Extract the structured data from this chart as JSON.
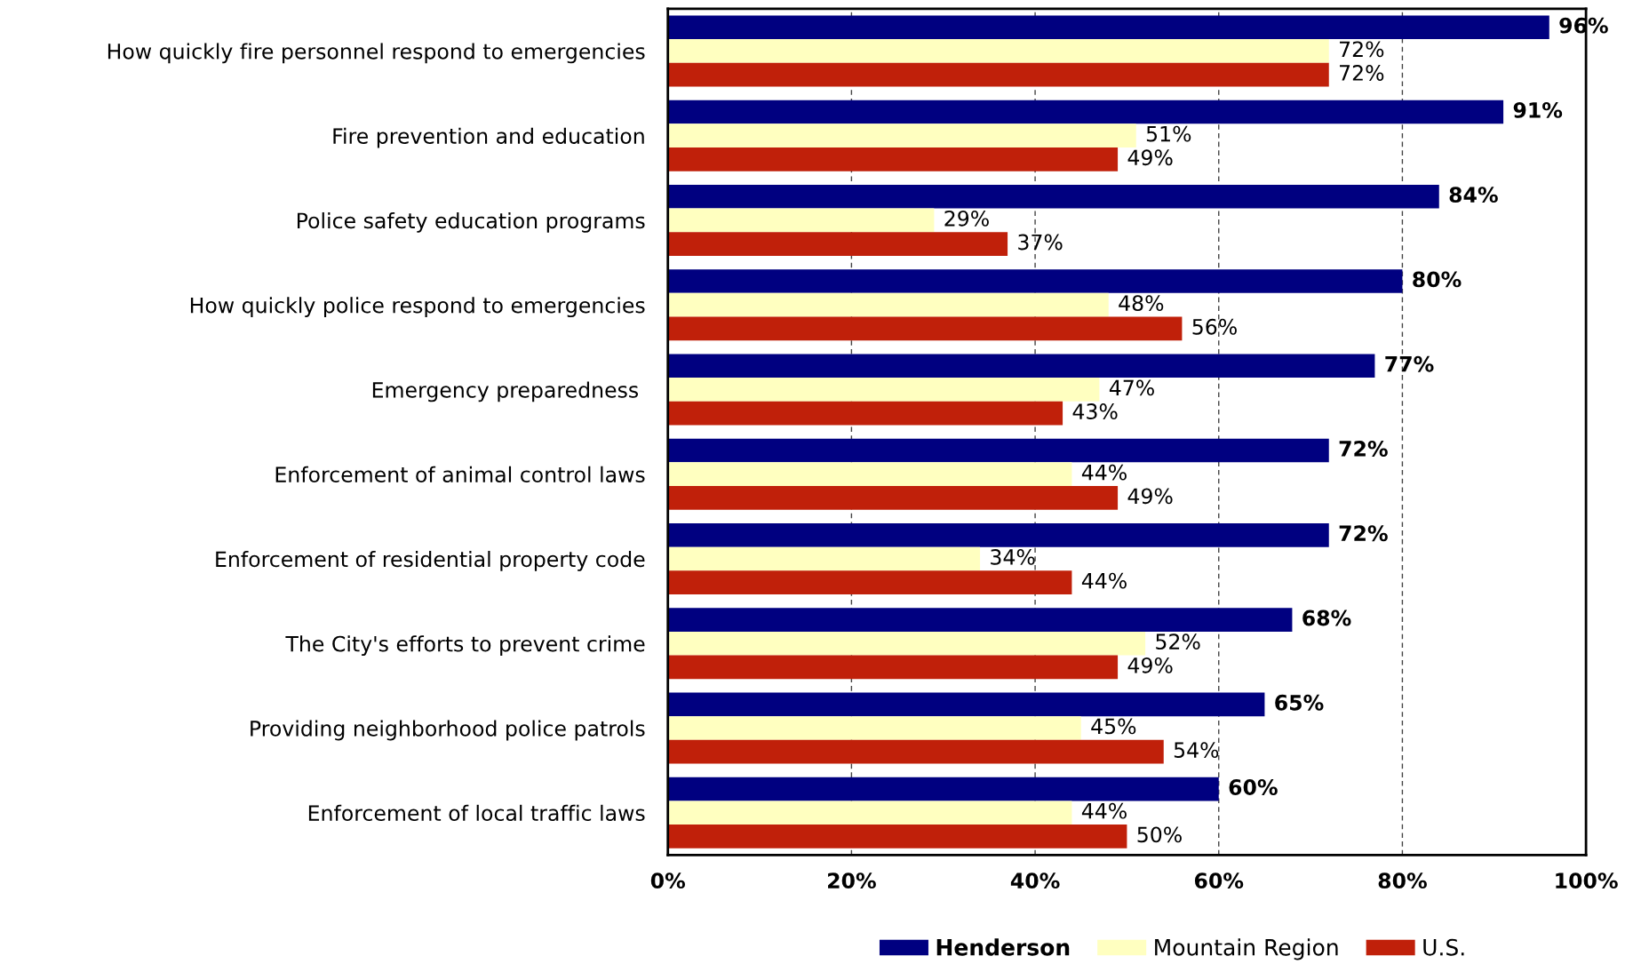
{
  "chart_data": {
    "type": "bar",
    "orientation": "horizontal",
    "categories": [
      "How quickly fire personnel respond to emergencies",
      "Fire prevention and education",
      "Police safety education programs",
      "How quickly police respond to emergencies",
      "Emergency preparedness ",
      "Enforcement of animal control laws",
      "Enforcement of residential property code",
      "The City's efforts to prevent crime",
      "Providing neighborhood police patrols",
      "Enforcement of local traffic laws"
    ],
    "series": [
      {
        "name": "Henderson",
        "color": "#000080",
        "values": [
          96,
          91,
          84,
          80,
          77,
          72,
          72,
          68,
          65,
          60
        ],
        "value_labels": [
          "96%",
          "91%",
          "84%",
          "80%",
          "77%",
          "72%",
          "72%",
          "68%",
          "65%",
          "60%"
        ]
      },
      {
        "name": "Mountain Region",
        "color": "#ffffc0",
        "values": [
          72,
          51,
          29,
          48,
          47,
          44,
          34,
          52,
          45,
          44
        ],
        "value_labels": [
          "72%",
          "51%",
          "29%",
          "48%",
          "47%",
          "44%",
          "34%",
          "52%",
          "45%",
          "44%"
        ]
      },
      {
        "name": "U.S.",
        "color": "#c0200a",
        "values": [
          72,
          49,
          37,
          56,
          43,
          49,
          44,
          49,
          54,
          50
        ],
        "value_labels": [
          "72%",
          "49%",
          "37%",
          "56%",
          "43%",
          "49%",
          "44%",
          "49%",
          "54%",
          "50%"
        ]
      }
    ],
    "xlim": [
      0,
      100
    ],
    "xticks": [
      {
        "value": 0,
        "label": "0%"
      },
      {
        "value": 20,
        "label": "20%"
      },
      {
        "value": 40,
        "label": "40%"
      },
      {
        "value": 60,
        "label": "60%"
      },
      {
        "value": 80,
        "label": "80%"
      },
      {
        "value": 100,
        "label": "100%"
      }
    ],
    "grid": "x",
    "legend": "bottom"
  }
}
